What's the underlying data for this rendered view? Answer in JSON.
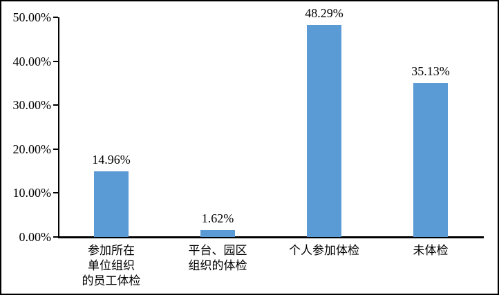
{
  "chart_data": {
    "type": "bar",
    "title": "",
    "xlabel": "",
    "ylabel": "",
    "grid": false,
    "legend": false,
    "categories": [
      "参加所在\n单位组织\n的员工体检",
      "平台、园区\n组织的体检",
      "个人参加体检",
      "未体检"
    ],
    "values": [
      14.96,
      1.62,
      48.29,
      35.13
    ],
    "value_labels": [
      "14.96%",
      "1.62%",
      "48.29%",
      "35.13%"
    ],
    "y_axis": {
      "range": [
        0,
        50
      ],
      "tick_values": [
        0,
        10,
        20,
        30,
        40,
        50
      ],
      "tick_labels": [
        "0.00%",
        "10.00%",
        "20.00%",
        "30.00%",
        "40.00%",
        "50.00%"
      ]
    },
    "colors": {
      "bar": "#5B9BD5",
      "axis": "#000000",
      "text": "#000000",
      "background": "#FFFFFF",
      "frame_border": "#000000"
    }
  }
}
